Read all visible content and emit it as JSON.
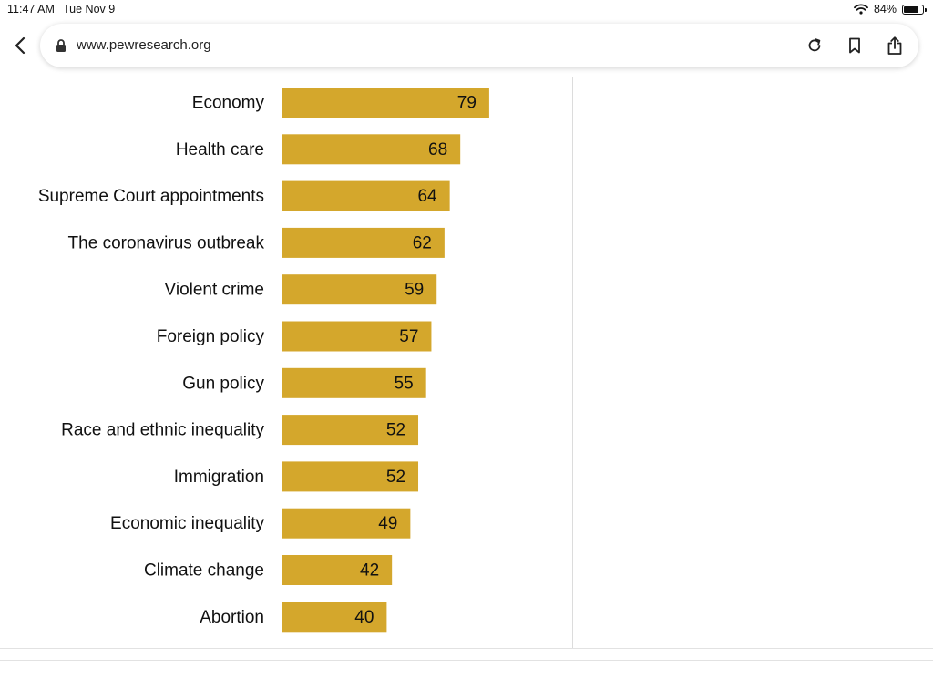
{
  "status_bar": {
    "time": "11:47 AM",
    "date": "Tue Nov 9",
    "battery": "84%",
    "battery_level": 0.84
  },
  "browser": {
    "url": "www.pewresearch.org",
    "icons": [
      "back-icon",
      "lock-icon",
      "reload-icon",
      "bookmark-icon",
      "share-icon"
    ]
  },
  "colors": {
    "bar": "#D4A72C"
  },
  "chart_data": {
    "type": "bar",
    "orientation": "horizontal",
    "categories": [
      "Economy",
      "Health care",
      "Supreme Court appointments",
      "The coronavirus outbreak",
      "Violent crime",
      "Foreign policy",
      "Gun policy",
      "Race and ethnic inequality",
      "Immigration",
      "Economic inequality",
      "Climate change",
      "Abortion"
    ],
    "values": [
      79,
      68,
      64,
      62,
      59,
      57,
      55,
      52,
      52,
      49,
      42,
      40
    ],
    "data_labels": [
      "79",
      "68",
      "64",
      "62",
      "59",
      "57",
      "55",
      "52",
      "52",
      "49",
      "42",
      "40"
    ],
    "title": "",
    "xlabel": "",
    "ylabel": "",
    "xlim": [
      0,
      100
    ],
    "grid": false,
    "legend": "none"
  }
}
